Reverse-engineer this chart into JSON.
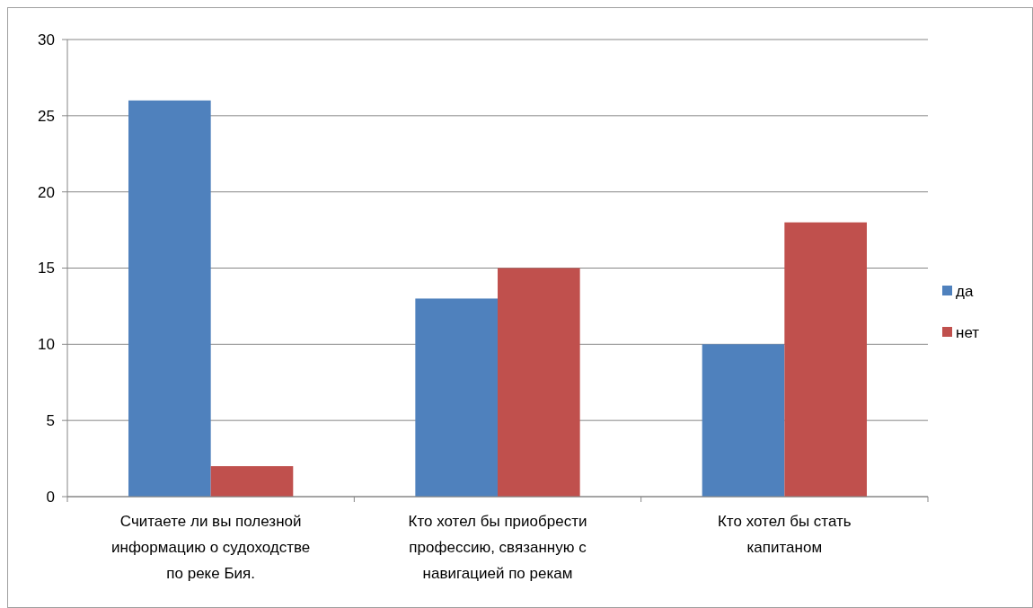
{
  "chart_data": {
    "type": "bar",
    "categories": [
      "Считаете ли вы полезной информацию о судоходстве по реке Бия.",
      "Кто хотел бы приобрести профессию, связанную с навигацией по рекам",
      "Кто хотел бы стать капитаном"
    ],
    "series": [
      {
        "name": "да",
        "color": "#4f81bd",
        "values": [
          26,
          13,
          10
        ]
      },
      {
        "name": "нет",
        "color": "#c0504d",
        "values": [
          2,
          15,
          18
        ]
      }
    ],
    "ylim": [
      0,
      30
    ],
    "yticks": [
      0,
      5,
      10,
      15,
      20,
      25,
      30
    ],
    "grid": "y",
    "legend": "right"
  }
}
